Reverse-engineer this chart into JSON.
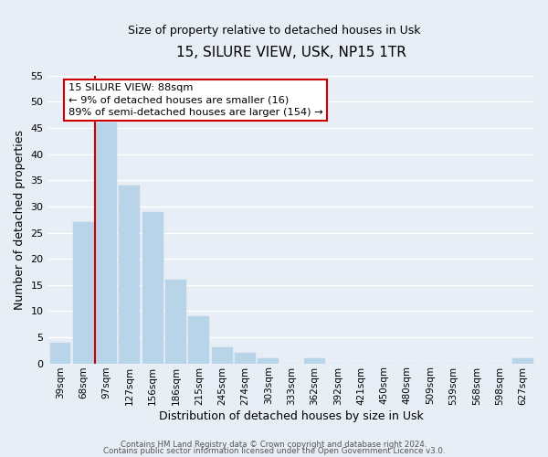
{
  "title": "15, SILURE VIEW, USK, NP15 1TR",
  "subtitle": "Size of property relative to detached houses in Usk",
  "xlabel": "Distribution of detached houses by size in Usk",
  "ylabel": "Number of detached properties",
  "bar_categories": [
    "39sqm",
    "68sqm",
    "97sqm",
    "127sqm",
    "156sqm",
    "186sqm",
    "215sqm",
    "245sqm",
    "274sqm",
    "303sqm",
    "333sqm",
    "362sqm",
    "392sqm",
    "421sqm",
    "450sqm",
    "480sqm",
    "509sqm",
    "539sqm",
    "568sqm",
    "598sqm",
    "627sqm"
  ],
  "bar_values": [
    4,
    27,
    46,
    34,
    29,
    16,
    9,
    3,
    2,
    1,
    0,
    1,
    0,
    0,
    0,
    0,
    0,
    0,
    0,
    0,
    1
  ],
  "bar_color": "#b8d4e8",
  "vline_x": 1.5,
  "vline_color": "#cc0000",
  "ylim": [
    0,
    55
  ],
  "yticks": [
    0,
    5,
    10,
    15,
    20,
    25,
    30,
    35,
    40,
    45,
    50,
    55
  ],
  "annotation_box_text": "15 SILURE VIEW: 88sqm\n← 9% of detached houses are smaller (16)\n89% of semi-detached houses are larger (154) →",
  "annotation_box_color": "#ffffff",
  "annotation_box_edgecolor": "#cc0000",
  "footer_line1": "Contains HM Land Registry data © Crown copyright and database right 2024.",
  "footer_line2": "Contains public sector information licensed under the Open Government Licence v3.0.",
  "background_color": "#e8eef5",
  "grid_color": "#ffffff",
  "title_fontsize": 11,
  "subtitle_fontsize": 9
}
